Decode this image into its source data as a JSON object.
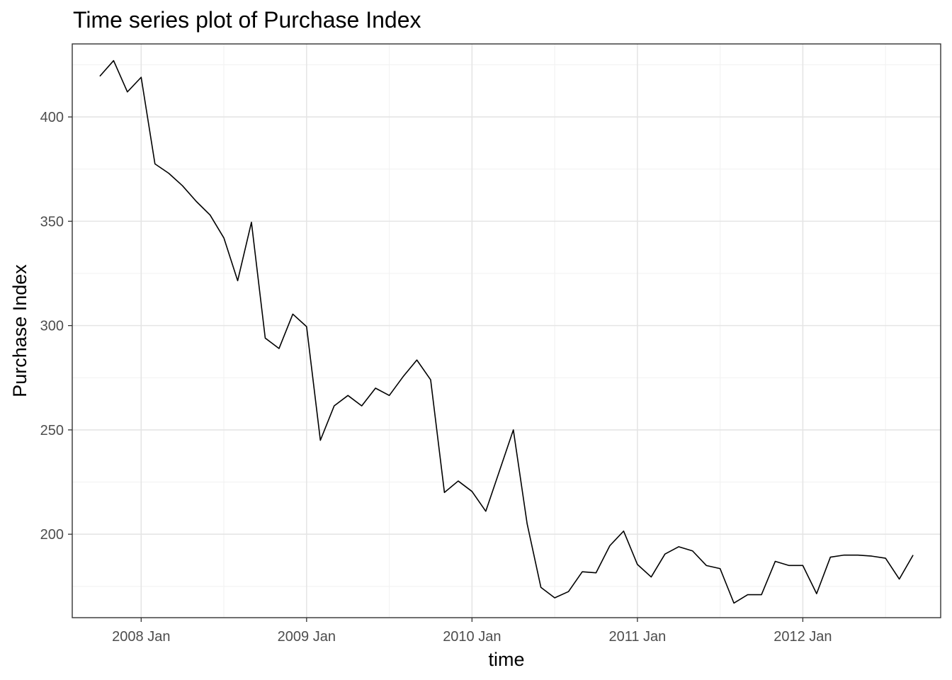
{
  "chart_data": {
    "type": "line",
    "title": "Time series plot of Purchase Index",
    "xlabel": "time",
    "ylabel": "Purchase Index",
    "x_tick_labels": [
      "2008 Jan",
      "2009 Jan",
      "2010 Jan",
      "2011 Jan",
      "2012 Jan"
    ],
    "y_ticks": [
      200,
      250,
      300,
      350,
      400
    ],
    "ylim": [
      160,
      435
    ],
    "xlim": [
      "2007-08",
      "2012-11"
    ],
    "grid": true,
    "line_color": "#000000",
    "series": [
      {
        "x": [
          "2007-10",
          "2007-11",
          "2007-12",
          "2008-01",
          "2008-02",
          "2008-03",
          "2008-04",
          "2008-05",
          "2008-06",
          "2008-07",
          "2008-08",
          "2008-09",
          "2008-10",
          "2008-11",
          "2008-12",
          "2009-01",
          "2009-02",
          "2009-03",
          "2009-04",
          "2009-05",
          "2009-06",
          "2009-07",
          "2009-08",
          "2009-09",
          "2009-10",
          "2009-11",
          "2009-12",
          "2010-01",
          "2010-02",
          "2010-03",
          "2010-04",
          "2010-05",
          "2010-06",
          "2010-07",
          "2010-08",
          "2010-09",
          "2010-10",
          "2010-11",
          "2010-12",
          "2011-01",
          "2011-02",
          "2011-03",
          "2011-04",
          "2011-05",
          "2011-06",
          "2011-07",
          "2011-08",
          "2011-09",
          "2011-10",
          "2011-11",
          "2011-12",
          "2012-01",
          "2012-02",
          "2012-03",
          "2012-04",
          "2012-05",
          "2012-06",
          "2012-07",
          "2012-08",
          "2012-09"
        ],
        "values": [
          419.5,
          427,
          412,
          419,
          377.5,
          373,
          367,
          359.5,
          353,
          342,
          321.5,
          349.5,
          294,
          289,
          305.5,
          299.5,
          245,
          261.5,
          266.5,
          261.5,
          270,
          266.5,
          275.5,
          283.5,
          274,
          220,
          225.5,
          220.5,
          211,
          230.5,
          250,
          205,
          174.5,
          169.5,
          172.5,
          182,
          181.5,
          194.5,
          201.5,
          185.5,
          179.5,
          190.5,
          194,
          192,
          185,
          183.5,
          167,
          171,
          171,
          187,
          185,
          185,
          171.5,
          189,
          190,
          190,
          189.5,
          188.5,
          178.5,
          190
        ]
      }
    ]
  }
}
